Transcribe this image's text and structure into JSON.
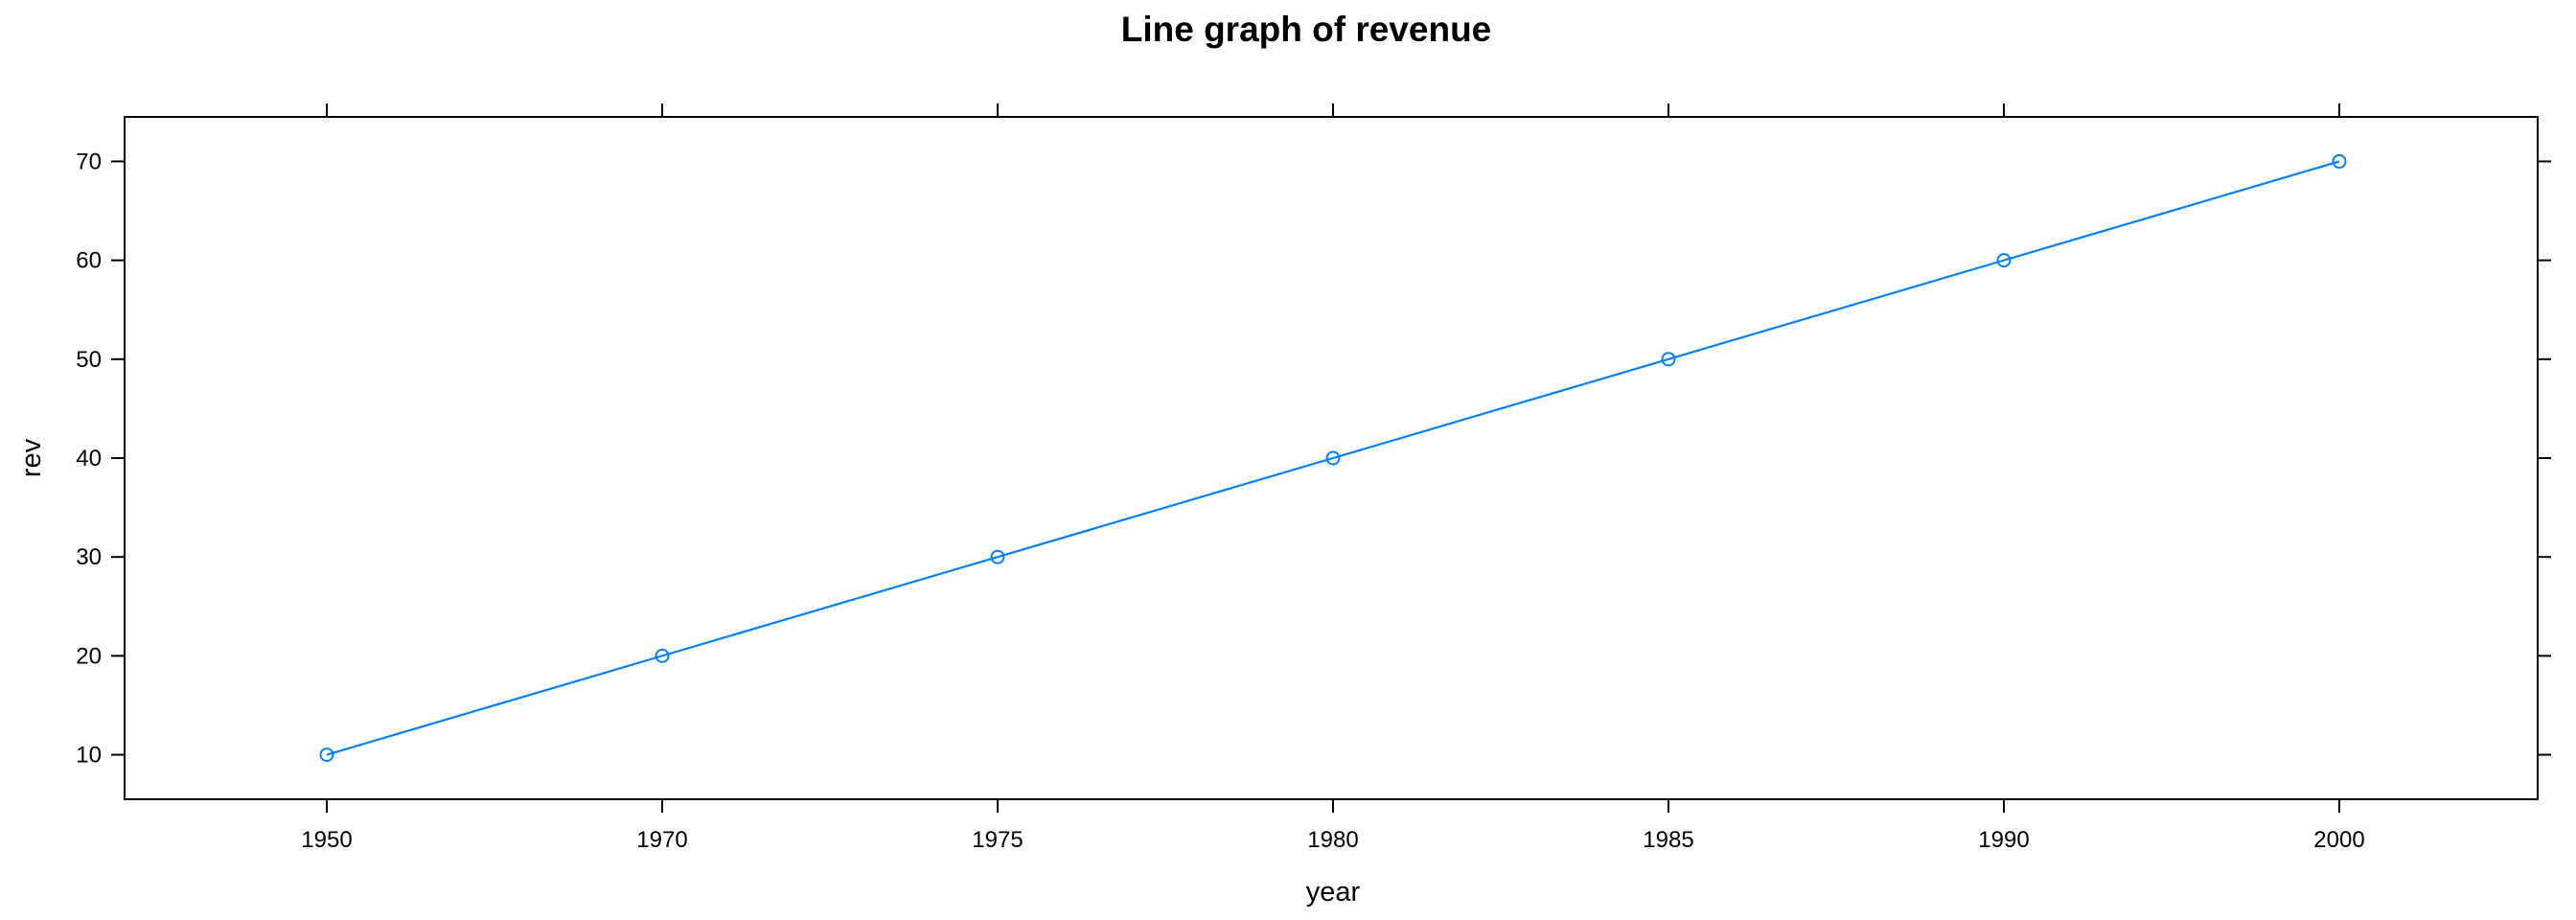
{
  "chart_data": {
    "type": "line",
    "title": "Line graph of revenue",
    "xlabel": "year",
    "ylabel": "rev",
    "categories": [
      "1950",
      "1970",
      "1975",
      "1980",
      "1985",
      "1990",
      "2000"
    ],
    "series": [
      {
        "values": [
          10,
          20,
          30,
          40,
          50,
          60,
          70
        ]
      }
    ],
    "y_ticks": [
      "10",
      "20",
      "30",
      "40",
      "50",
      "60",
      "70"
    ],
    "ylim": [
      5.5,
      74.5
    ],
    "grid": false,
    "legend": "none",
    "line_color": "#0080ff",
    "marker": "open-circle"
  }
}
